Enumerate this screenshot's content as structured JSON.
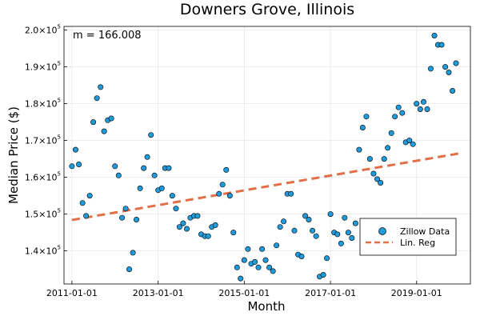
{
  "colors": {
    "scatter": "#1f9bdc",
    "scatter_edge": "#000000",
    "regression": "#e26f46"
  },
  "chart_data": {
    "type": "scatter",
    "title": "Downers Grove, Illinois",
    "xlabel": "Month",
    "ylabel": "Median Price ($)",
    "annotation": "m = 166.008",
    "x_ticks": [
      "2011-01-01",
      "2013-01-01",
      "2015-01-01",
      "2017-01-01",
      "2019-01-01"
    ],
    "y_ticks": [
      {
        "value": 140000,
        "mantissa": "1.4",
        "exponent": "5"
      },
      {
        "value": 150000,
        "mantissa": "1.5",
        "exponent": "5"
      },
      {
        "value": 160000,
        "mantissa": "1.6",
        "exponent": "5"
      },
      {
        "value": 170000,
        "mantissa": "1.7",
        "exponent": "5"
      },
      {
        "value": 180000,
        "mantissa": "1.8",
        "exponent": "5"
      },
      {
        "value": 190000,
        "mantissa": "1.9",
        "exponent": "5"
      },
      {
        "value": 200000,
        "mantissa": "2.0",
        "exponent": "5"
      }
    ],
    "y_tick_base": "10",
    "ylim": [
      131000,
      201000
    ],
    "xlim": [
      "2010-10-26",
      "2020-04-01"
    ],
    "grid": true,
    "legend_position": "bottom-right",
    "series": [
      {
        "name": "Zillow Data",
        "kind": "scatter",
        "x": [
          "2011-01-01",
          "2011-02-01",
          "2011-03-01",
          "2011-04-01",
          "2011-05-01",
          "2011-06-01",
          "2011-07-01",
          "2011-08-01",
          "2011-09-01",
          "2011-10-01",
          "2011-11-01",
          "2011-12-01",
          "2012-01-01",
          "2012-02-01",
          "2012-03-01",
          "2012-04-01",
          "2012-05-01",
          "2012-06-01",
          "2012-07-01",
          "2012-08-01",
          "2012-09-01",
          "2012-10-01",
          "2012-11-01",
          "2012-12-01",
          "2013-01-01",
          "2013-02-01",
          "2013-03-01",
          "2013-04-01",
          "2013-05-01",
          "2013-06-01",
          "2013-07-01",
          "2013-08-01",
          "2013-09-01",
          "2013-10-01",
          "2013-11-01",
          "2013-12-01",
          "2014-01-01",
          "2014-02-01",
          "2014-03-01",
          "2014-04-01",
          "2014-05-01",
          "2014-06-01",
          "2014-07-01",
          "2014-08-01",
          "2014-09-01",
          "2014-10-01",
          "2014-11-01",
          "2014-12-01",
          "2015-01-01",
          "2015-02-01",
          "2015-03-01",
          "2015-04-01",
          "2015-05-01",
          "2015-06-01",
          "2015-07-01",
          "2015-08-01",
          "2015-09-01",
          "2015-10-01",
          "2015-11-01",
          "2015-12-01",
          "2016-01-01",
          "2016-02-01",
          "2016-03-01",
          "2016-04-01",
          "2016-05-01",
          "2016-06-01",
          "2016-07-01",
          "2016-08-01",
          "2016-09-01",
          "2016-10-01",
          "2016-11-01",
          "2016-12-01",
          "2017-01-01",
          "2017-02-01",
          "2017-03-01",
          "2017-04-01",
          "2017-05-01",
          "2017-06-01",
          "2017-07-01",
          "2017-08-01",
          "2017-09-01",
          "2017-10-01",
          "2017-11-01",
          "2017-12-01",
          "2018-01-01",
          "2018-02-01",
          "2018-03-01",
          "2018-04-01",
          "2018-05-01",
          "2018-06-01",
          "2018-07-01",
          "2018-08-01",
          "2018-09-01",
          "2018-10-01",
          "2018-11-01",
          "2018-12-01",
          "2019-01-01",
          "2019-02-01",
          "2019-03-01",
          "2019-04-01",
          "2019-05-01",
          "2019-06-01",
          "2019-07-01",
          "2019-08-01",
          "2019-09-01",
          "2019-10-01",
          "2019-11-01",
          "2019-12-01"
        ],
        "y": [
          163000,
          167500,
          163500,
          153000,
          149500,
          155000,
          175000,
          181500,
          184500,
          172500,
          175500,
          176000,
          163000,
          160500,
          149000,
          151500,
          135000,
          139500,
          148500,
          157000,
          162500,
          165500,
          171500,
          160500,
          156500,
          157000,
          162500,
          162500,
          155000,
          151500,
          146500,
          147500,
          146000,
          149000,
          149500,
          149500,
          144500,
          144000,
          144000,
          146500,
          147000,
          155500,
          158000,
          162000,
          155000,
          145000,
          135500,
          132500,
          137500,
          140500,
          136500,
          137000,
          135500,
          140500,
          137500,
          135500,
          134500,
          141500,
          146500,
          148000,
          155500,
          155500,
          145500,
          139000,
          138500,
          149500,
          148500,
          145500,
          144000,
          133000,
          133500,
          138000,
          150000,
          145000,
          144500,
          142000,
          149000,
          145000,
          143500,
          147500,
          167500,
          173500,
          176500,
          165000,
          161000,
          159500,
          158500,
          165000,
          168000,
          172000,
          176500,
          179000,
          177500,
          169500,
          170000,
          169000,
          180000,
          178500,
          180500,
          178500,
          189500,
          198500,
          196000,
          196000,
          190000,
          188500,
          183500,
          191000
        ]
      },
      {
        "name": "Lin. Reg",
        "kind": "line",
        "x": [
          "2011-01-01",
          "2020-01-01"
        ],
        "y": [
          148400,
          166500
        ]
      }
    ]
  }
}
